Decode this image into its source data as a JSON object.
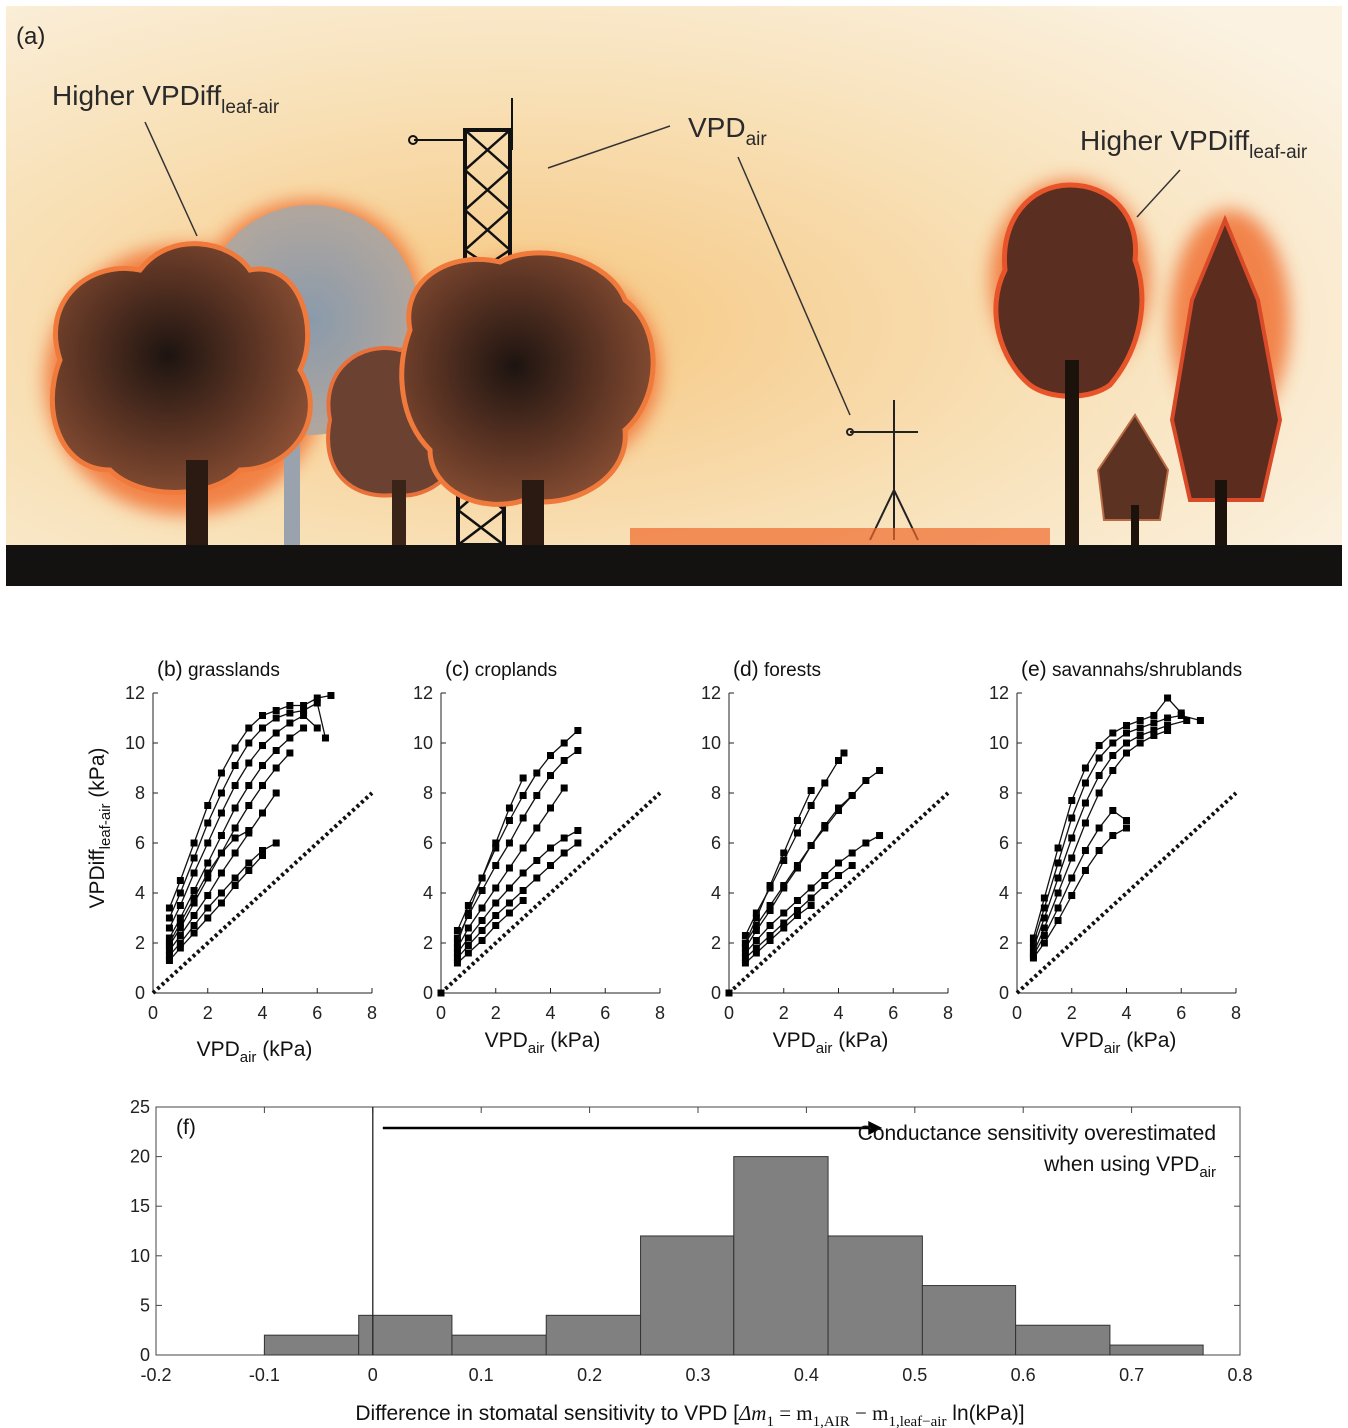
{
  "panel_a": {
    "label": "(a)",
    "callout_left": {
      "main": "Higher VPDiff",
      "sub": "leaf-air"
    },
    "callout_center": {
      "main": "VPD",
      "sub": "air"
    },
    "callout_right": {
      "main": "Higher VPDiff",
      "sub": "leaf-air"
    }
  },
  "colors": {
    "marker": "#000000",
    "bar_fill": "#808080",
    "bar_stroke": "#333333",
    "halo": "#f06a2c",
    "sky": "#f7e2bf"
  },
  "chart_data": [
    {
      "type": "line",
      "panel": "(b)",
      "title": "grasslands",
      "xlabel": {
        "main": "VPD",
        "sub": "air",
        "unit": "(kPa)"
      },
      "ylabel": {
        "main": "VPDiff",
        "sub": "leaf-air",
        "unit": "(kPa)"
      },
      "xlim": [
        0,
        8
      ],
      "ylim": [
        0,
        12
      ],
      "xticks": [
        0,
        2,
        4,
        6,
        8
      ],
      "yticks": [
        0,
        2,
        4,
        6,
        8,
        10,
        12
      ],
      "reference_line": {
        "style": "dotted",
        "x": [
          0,
          8
        ],
        "y": [
          0,
          8
        ]
      },
      "series": [
        {
          "x": [
            0.6,
            1.0,
            1.5,
            2.0,
            2.5,
            3.0,
            3.5,
            4.0,
            4.5,
            5.0,
            5.5,
            6.0,
            6.5
          ],
          "y": [
            3.4,
            4.5,
            6.0,
            7.5,
            8.8,
            9.8,
            10.6,
            11.1,
            11.3,
            11.5,
            11.5,
            11.8,
            11.9
          ]
        },
        {
          "x": [
            0.6,
            1.0,
            1.5,
            2.0,
            2.5,
            3.0,
            3.5,
            4.0,
            4.5,
            5.0,
            5.5,
            6.0,
            6.3
          ],
          "y": [
            3.0,
            4.0,
            5.4,
            6.8,
            8.0,
            9.1,
            10.0,
            10.6,
            11.0,
            11.2,
            11.3,
            11.6,
            10.2
          ]
        },
        {
          "x": [
            0.6,
            1.0,
            1.5,
            2.0,
            2.5,
            3.0,
            3.5,
            4.0,
            4.5,
            5.0,
            5.5,
            6.0
          ],
          "y": [
            2.6,
            3.5,
            4.8,
            6.0,
            7.2,
            8.3,
            9.2,
            9.9,
            10.4,
            10.8,
            11.1,
            10.6
          ]
        },
        {
          "x": [
            0.6,
            1.0,
            1.5,
            2.0,
            2.5,
            3.0,
            3.5,
            4.0,
            4.5,
            5.0,
            5.5
          ],
          "y": [
            2.2,
            3.0,
            4.1,
            5.2,
            6.3,
            7.4,
            8.3,
            9.1,
            9.7,
            10.2,
            10.6
          ]
        },
        {
          "x": [
            0.6,
            1.0,
            1.5,
            2.0,
            2.5,
            3.0,
            3.5,
            4.0,
            4.5,
            5.0
          ],
          "y": [
            1.9,
            2.6,
            3.6,
            4.6,
            5.6,
            6.6,
            7.5,
            8.3,
            9.0,
            9.6
          ]
        },
        {
          "x": [
            0.6,
            1.0,
            1.5,
            2.0,
            2.5,
            3.0,
            3.5,
            4.0,
            4.5
          ],
          "y": [
            1.7,
            2.3,
            3.1,
            3.9,
            4.8,
            5.6,
            6.4,
            7.2,
            8.0
          ]
        },
        {
          "x": [
            0.6,
            1.0,
            1.5,
            2.0,
            2.5,
            3.0,
            3.5,
            4.0,
            4.5
          ],
          "y": [
            1.5,
            2.0,
            2.7,
            3.4,
            4.0,
            4.6,
            5.2,
            5.7,
            6.0
          ]
        },
        {
          "x": [
            0.6,
            1.0,
            1.5,
            2.0,
            2.5,
            3.0,
            3.5,
            4.0
          ],
          "y": [
            1.3,
            1.8,
            2.4,
            3.0,
            3.6,
            4.3,
            4.9,
            5.5
          ]
        },
        {
          "x": [
            0.6,
            1.0,
            1.5,
            2.0,
            2.5,
            3.0,
            3.5
          ],
          "y": [
            2.0,
            2.8,
            3.8,
            4.8,
            5.6,
            6.2,
            6.5
          ]
        }
      ]
    },
    {
      "type": "line",
      "panel": "(c)",
      "title": "croplands",
      "xlabel": {
        "main": "VPD",
        "sub": "air",
        "unit": "(kPa)"
      },
      "xlim": [
        0,
        8
      ],
      "ylim": [
        0,
        12
      ],
      "xticks": [
        0,
        2,
        4,
        6,
        8
      ],
      "yticks": [
        0,
        2,
        4,
        6,
        8,
        10,
        12
      ],
      "reference_line": {
        "style": "dotted",
        "x": [
          0,
          8
        ],
        "y": [
          0,
          8
        ]
      },
      "series": [
        {
          "x": [
            0.0
          ],
          "y": [
            0.0
          ]
        },
        {
          "x": [
            0.6,
            1.0,
            1.5,
            2.0,
            2.5,
            3.0,
            3.5,
            4.0,
            4.5,
            5.0
          ],
          "y": [
            2.5,
            3.5,
            4.6,
            5.8,
            6.9,
            7.9,
            8.8,
            9.5,
            10.0,
            10.5
          ]
        },
        {
          "x": [
            0.6,
            1.0,
            1.5,
            2.0,
            2.5,
            3.0,
            3.5,
            4.0,
            4.5,
            5.0
          ],
          "y": [
            2.2,
            3.1,
            4.1,
            5.1,
            6.0,
            7.0,
            7.9,
            8.7,
            9.3,
            9.7
          ]
        },
        {
          "x": [
            0.6,
            1.0,
            1.5,
            2.0,
            2.5,
            3.0
          ],
          "y": [
            2.0,
            3.2,
            4.6,
            6.0,
            7.4,
            8.6
          ]
        },
        {
          "x": [
            0.6,
            1.0,
            1.5,
            2.0,
            2.5,
            3.0,
            3.5,
            4.0,
            4.5
          ],
          "y": [
            1.8,
            2.6,
            3.4,
            4.2,
            5.0,
            5.8,
            6.6,
            7.4,
            8.2
          ]
        },
        {
          "x": [
            0.6,
            1.0,
            1.5,
            2.0,
            2.5,
            3.0,
            3.5,
            4.0,
            4.5,
            5.0
          ],
          "y": [
            1.6,
            2.2,
            2.9,
            3.6,
            4.2,
            4.8,
            5.3,
            5.8,
            6.2,
            6.5
          ]
        },
        {
          "x": [
            0.6,
            1.0,
            1.5,
            2.0,
            2.5,
            3.0,
            3.5,
            4.0,
            4.5,
            5.0
          ],
          "y": [
            1.4,
            1.9,
            2.5,
            3.1,
            3.6,
            4.1,
            4.6,
            5.1,
            5.6,
            6.0
          ]
        },
        {
          "x": [
            0.6,
            1.0,
            1.5,
            2.0,
            2.5,
            3.0
          ],
          "y": [
            1.2,
            1.6,
            2.1,
            2.7,
            3.2,
            3.7
          ]
        }
      ]
    },
    {
      "type": "line",
      "panel": "(d)",
      "title": "forests",
      "xlabel": {
        "main": "VPD",
        "sub": "air",
        "unit": "(kPa)"
      },
      "xlim": [
        0,
        8
      ],
      "ylim": [
        0,
        12
      ],
      "xticks": [
        0,
        2,
        4,
        6,
        8
      ],
      "yticks": [
        0,
        2,
        4,
        6,
        8,
        10,
        12
      ],
      "reference_line": {
        "style": "dotted",
        "x": [
          0,
          8
        ],
        "y": [
          0,
          8
        ]
      },
      "series": [
        {
          "x": [
            0.0
          ],
          "y": [
            0.0
          ]
        },
        {
          "x": [
            0.6,
            1.0,
            1.5,
            2.0,
            2.5,
            3.0,
            3.5,
            4.0,
            4.2
          ],
          "y": [
            2.3,
            3.2,
            4.2,
            5.3,
            6.4,
            7.5,
            8.4,
            9.3,
            9.6
          ]
        },
        {
          "x": [
            0.6,
            1.0,
            1.5,
            2.0,
            2.5,
            3.0,
            3.5,
            4.0,
            4.5,
            5.0,
            5.5
          ],
          "y": [
            2.0,
            2.7,
            3.5,
            4.3,
            5.1,
            5.9,
            6.6,
            7.3,
            7.9,
            8.5,
            8.9
          ]
        },
        {
          "x": [
            0.6,
            1.0,
            1.5,
            2.0,
            2.5,
            3.0,
            3.5,
            4.0,
            4.5
          ],
          "y": [
            1.8,
            2.5,
            3.3,
            4.2,
            5.0,
            5.9,
            6.7,
            7.4,
            7.9
          ]
        },
        {
          "x": [
            0.6,
            1.0,
            1.5,
            2.0,
            2.5,
            3.0
          ],
          "y": [
            2.0,
            3.0,
            4.3,
            5.6,
            6.9,
            8.1
          ]
        },
        {
          "x": [
            0.6,
            1.0,
            1.5,
            2.0,
            2.5,
            3.0,
            3.5,
            4.0,
            4.5,
            5.0,
            5.5
          ],
          "y": [
            1.6,
            2.1,
            2.7,
            3.2,
            3.7,
            4.2,
            4.7,
            5.2,
            5.6,
            6.0,
            6.3
          ]
        },
        {
          "x": [
            0.6,
            1.0,
            1.5,
            2.0,
            2.5,
            3.0,
            3.5,
            4.0,
            4.5
          ],
          "y": [
            1.4,
            1.8,
            2.3,
            2.8,
            3.3,
            3.8,
            4.3,
            4.7,
            5.1
          ]
        },
        {
          "x": [
            0.6,
            1.0,
            1.5,
            2.0,
            2.5,
            3.0
          ],
          "y": [
            1.2,
            1.6,
            2.1,
            2.6,
            3.1,
            3.5
          ]
        }
      ]
    },
    {
      "type": "line",
      "panel": "(e)",
      "title": "savannahs/shrublands",
      "xlabel": {
        "main": "VPD",
        "sub": "air",
        "unit": "(kPa)"
      },
      "xlim": [
        0,
        8
      ],
      "ylim": [
        0,
        12
      ],
      "xticks": [
        0,
        2,
        4,
        6,
        8
      ],
      "yticks": [
        0,
        2,
        4,
        6,
        8,
        10,
        12
      ],
      "reference_line": {
        "style": "dotted",
        "x": [
          0,
          8
        ],
        "y": [
          0,
          8
        ]
      },
      "series": [
        {
          "x": [
            0.6,
            1.0,
            1.5,
            2.0,
            2.5,
            3.0,
            3.5,
            4.0,
            4.5,
            5.0,
            5.5,
            6.0
          ],
          "y": [
            2.2,
            3.8,
            5.8,
            7.7,
            9.0,
            9.9,
            10.4,
            10.7,
            10.9,
            11.1,
            11.8,
            11.2
          ]
        },
        {
          "x": [
            0.6,
            1.0,
            1.5,
            2.0,
            2.5,
            3.0,
            3.5,
            4.0,
            4.5,
            5.0,
            5.5,
            6.0,
            6.7
          ],
          "y": [
            2.0,
            3.4,
            5.2,
            7.0,
            8.4,
            9.4,
            10.0,
            10.4,
            10.6,
            10.8,
            11.0,
            11.1,
            10.9
          ]
        },
        {
          "x": [
            0.6,
            1.0,
            1.5,
            2.0,
            2.5,
            3.0,
            3.5,
            4.0,
            4.5,
            5.0,
            5.5,
            6.2
          ],
          "y": [
            1.8,
            3.0,
            4.6,
            6.2,
            7.6,
            8.7,
            9.5,
            10.0,
            10.3,
            10.5,
            10.7,
            10.9
          ]
        },
        {
          "x": [
            0.6,
            1.0,
            1.5,
            2.0,
            2.5,
            3.0,
            3.5,
            4.0,
            4.5,
            5.0,
            5.5
          ],
          "y": [
            1.6,
            2.6,
            4.0,
            5.4,
            6.8,
            8.0,
            8.9,
            9.6,
            10.0,
            10.3,
            10.5
          ]
        },
        {
          "x": [
            0.6,
            1.0,
            1.5,
            2.0,
            2.5,
            3.0,
            3.5,
            4.0
          ],
          "y": [
            1.5,
            2.3,
            3.4,
            4.6,
            5.7,
            6.6,
            7.3,
            6.9
          ]
        },
        {
          "x": [
            0.6,
            1.0,
            1.5,
            2.0,
            2.5,
            3.0,
            3.5,
            4.0
          ],
          "y": [
            1.4,
            2.0,
            2.9,
            3.9,
            4.9,
            5.7,
            6.3,
            6.6
          ]
        }
      ]
    },
    {
      "type": "bar",
      "subtype": "histogram",
      "panel": "(f)",
      "bin_edges": [
        -0.1,
        -0.013,
        0.073,
        0.16,
        0.247,
        0.333,
        0.42,
        0.507,
        0.593,
        0.68,
        0.766
      ],
      "values": [
        2,
        4,
        2,
        4,
        12,
        20,
        12,
        7,
        3,
        1
      ],
      "xlim": [
        -0.2,
        0.8
      ],
      "ylim": [
        0,
        25
      ],
      "xticks": [
        -0.2,
        -0.1,
        0,
        0.1,
        0.2,
        0.3,
        0.4,
        0.5,
        0.6,
        0.7,
        0.8
      ],
      "xtick_labels": [
        "-0.2",
        "-0.1",
        "0",
        "0.1",
        "0.2",
        "0.3",
        "0.4",
        "0.5",
        "0.6",
        "0.7",
        "0.8"
      ],
      "yticks": [
        0,
        5,
        10,
        15,
        20,
        25
      ],
      "vertical_line_x": 0,
      "arrow": {
        "from": 0,
        "to": 0.47
      },
      "annotation_line1": "Conductance sensitivity overestimated",
      "annotation_line2": {
        "main": "when using VPD",
        "sub": "air"
      },
      "xlabel": {
        "pre": "Difference in stomatal sensitivity to VPD [",
        "delta": "Δ",
        "m": "m",
        "sub1": "1",
        "eq": " = m",
        "sub_air": "1,AIR",
        "minus": " − m",
        "sub_leaf": "1,leaf−air",
        "post": " ln(kPa)]"
      }
    }
  ]
}
